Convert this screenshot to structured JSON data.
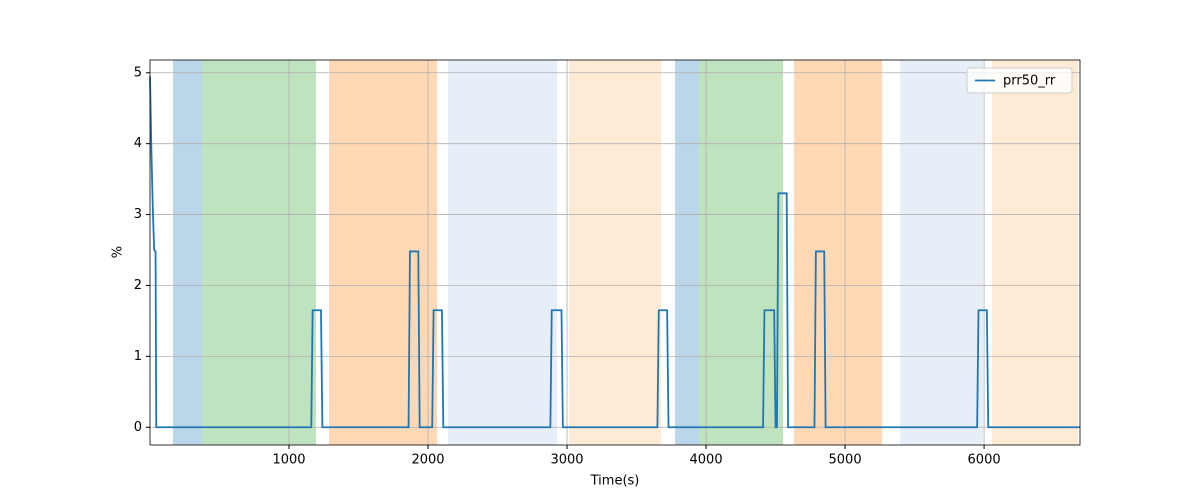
{
  "chart_data": {
    "type": "line",
    "xlabel": "Time(s)",
    "ylabel": "%",
    "x": [
      0,
      10,
      20,
      30,
      40,
      45,
      1160,
      1170,
      1230,
      1240,
      1860,
      1870,
      1930,
      1940,
      2030,
      2040,
      2100,
      2110,
      2880,
      2890,
      2960,
      2970,
      3650,
      3660,
      3720,
      3730,
      4410,
      4420,
      4490,
      4500,
      4510,
      4520,
      4580,
      4590,
      4780,
      4790,
      4850,
      4860,
      5950,
      5960,
      6020,
      6030,
      6690
    ],
    "series": [
      {
        "name": "prr50_rr",
        "color": "#1f77b4",
        "values": [
          4.95,
          3.9,
          3.1,
          2.5,
          2.48,
          0,
          0,
          1.65,
          1.65,
          0,
          0,
          2.48,
          2.48,
          0,
          0,
          1.65,
          1.65,
          0,
          0,
          1.65,
          1.65,
          0,
          0,
          1.65,
          1.65,
          0,
          0,
          1.65,
          1.65,
          0,
          0,
          3.3,
          3.3,
          0,
          0,
          2.48,
          2.48,
          0,
          0,
          1.65,
          1.65,
          0,
          0
        ]
      }
    ],
    "spans": [
      {
        "start": 165,
        "end": 374,
        "color": "#1f77b4"
      },
      {
        "start": 374,
        "end": 1194,
        "color": "#2ca02c"
      },
      {
        "start": 1288,
        "end": 2065,
        "color": "#ff7f0e"
      },
      {
        "start": 2144,
        "end": 2928,
        "color": "#aec7e8"
      },
      {
        "start": 3014,
        "end": 3676,
        "color": "#ffbb78"
      },
      {
        "start": 3777,
        "end": 3950,
        "color": "#1f77b4"
      },
      {
        "start": 3950,
        "end": 4554,
        "color": "#2ca02c"
      },
      {
        "start": 4633,
        "end": 5266,
        "color": "#ff7f0e"
      },
      {
        "start": 5396,
        "end": 5993,
        "color": "#aec7e8"
      },
      {
        "start": 6058,
        "end": 6676,
        "color": "#ffbb78"
      }
    ],
    "xlim": [
      0,
      6690
    ],
    "ylim": [
      -0.25,
      5.18
    ],
    "xticks": [
      1000,
      2000,
      3000,
      4000,
      5000,
      6000
    ],
    "yticks": [
      0,
      1,
      2,
      3,
      4,
      5
    ],
    "grid": true,
    "legend": "upper right"
  }
}
